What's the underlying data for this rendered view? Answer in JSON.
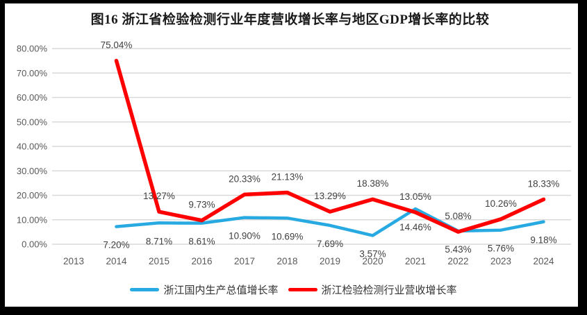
{
  "chart_data": {
    "type": "line",
    "title": "图16  浙江省检验检测行业年度营收增长率与地区GDP增长率的比较",
    "categories": [
      "2013",
      "2014",
      "2015",
      "2016",
      "2017",
      "2018",
      "2019",
      "2020",
      "2021",
      "2022",
      "2023",
      "2024"
    ],
    "series": [
      {
        "name": "浙江国内生产总值增长率",
        "color": "#27A9E1",
        "values": [
          null,
          7.2,
          8.71,
          8.61,
          10.9,
          10.69,
          7.69,
          3.57,
          14.46,
          5.43,
          5.76,
          9.18
        ],
        "labels": [
          null,
          "7.20%",
          "8.71%",
          "8.61%",
          "10.90%",
          "10.69%",
          "7.69%",
          "3.57%",
          "14.46%",
          "5.43%",
          "5.76%",
          "9.18%"
        ],
        "label_position": "below"
      },
      {
        "name": "浙江检验检测行业营收增长率",
        "color": "#FF0000",
        "values": [
          null,
          75.04,
          13.27,
          9.73,
          20.33,
          21.13,
          13.29,
          18.38,
          13.05,
          5.08,
          10.26,
          18.33
        ],
        "labels": [
          null,
          "75.04%",
          "13.27%",
          "9.73%",
          "20.33%",
          "21.13%",
          "13.29%",
          "18.38%",
          "13.05%",
          "5.08%",
          "10.26%",
          "18.33%"
        ],
        "label_position": "above"
      }
    ],
    "y_axis": {
      "min": 0,
      "max": 80,
      "step": 10,
      "tick_labels": [
        "0.00%",
        "10.00%",
        "20.00%",
        "30.00%",
        "40.00%",
        "50.00%",
        "60.00%",
        "70.00%",
        "80.00%"
      ]
    },
    "grid": true,
    "legend_position": "bottom",
    "colors": {
      "gridline": "#D9D9D9",
      "axis_text": "#595959",
      "data_label": "#3F3F3F",
      "frame": "#000000",
      "background": "#FFFFFF"
    }
  }
}
